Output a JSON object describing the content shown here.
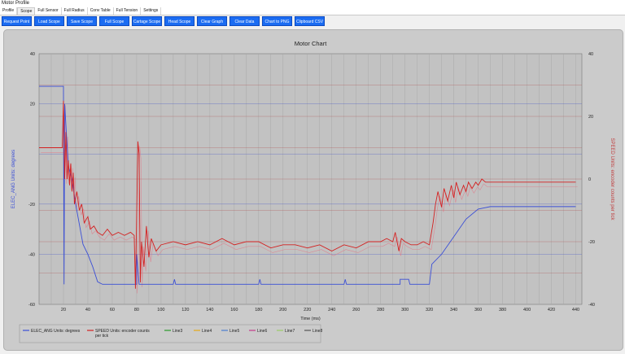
{
  "app_title": "Motor Profile",
  "tabs": [
    "Profile",
    "Scope",
    "Full Sensor",
    "Full Radius",
    "Conv Table",
    "Full Tension",
    "Settings"
  ],
  "active_tab": "Scope",
  "toolbar": [
    "Request Point",
    "Load Scope",
    "Save Scope",
    "Full Scope",
    "Cartage Scope",
    "Head Scope",
    "Clear Graph",
    "Clear Data",
    "Chart to PNG",
    "Clipboard CSV"
  ],
  "colors": {
    "button": "#1b6cf2",
    "plot_bg": "#c2c2c2",
    "elec": "#3b4fd6",
    "speed": "#d42020",
    "speed_light": "#e07a8a"
  },
  "chart_data": {
    "type": "line",
    "title": "Motor Chart",
    "xlabel": "Time (ms)",
    "ylabel": "ELEC_ANG Units: degrees",
    "y2label": "SPEED Units: encoder counts per tick",
    "xlim": [
      0,
      445
    ],
    "ylim": [
      -60,
      40
    ],
    "y2lim": [
      -40,
      40
    ],
    "x_ticks": [
      20,
      40,
      60,
      80,
      100,
      120,
      140,
      160,
      180,
      200,
      220,
      240,
      260,
      280,
      300,
      320,
      340,
      360,
      380,
      400,
      420,
      440
    ],
    "y_ticks": [
      40,
      20,
      -20,
      -40,
      -60
    ],
    "y2_ticks": [
      40,
      20,
      0,
      -20,
      -40
    ],
    "grid": true,
    "legend_position": "bottom-left",
    "series": [
      {
        "name": "ELEC_ANG Units: degrees",
        "axis": "left",
        "points": [
          [
            0,
            27
          ],
          [
            20,
            27
          ],
          [
            20.5,
            -52
          ],
          [
            21,
            20
          ],
          [
            24,
            -5
          ],
          [
            27,
            -10
          ],
          [
            30,
            -20
          ],
          [
            33,
            -28
          ],
          [
            36,
            -36
          ],
          [
            40,
            -40
          ],
          [
            44,
            -45
          ],
          [
            48,
            -51
          ],
          [
            52,
            -52
          ],
          [
            80,
            -52
          ],
          [
            80,
            -40
          ],
          [
            82,
            -52
          ],
          [
            110,
            -52
          ],
          [
            111,
            -50
          ],
          [
            112,
            -52
          ],
          [
            180,
            -52
          ],
          [
            181,
            -50
          ],
          [
            182,
            -52
          ],
          [
            250,
            -52
          ],
          [
            251,
            -50
          ],
          [
            252,
            -52
          ],
          [
            296,
            -52
          ],
          [
            296,
            -50
          ],
          [
            303,
            -50
          ],
          [
            304,
            -52
          ],
          [
            320,
            -52
          ],
          [
            322,
            -44
          ],
          [
            330,
            -40
          ],
          [
            340,
            -33
          ],
          [
            350,
            -26
          ],
          [
            360,
            -22
          ],
          [
            370,
            -21
          ],
          [
            440,
            -21
          ]
        ]
      },
      {
        "name": "SPEED Units: encoder counts per tick",
        "axis": "right",
        "points": [
          [
            0,
            10
          ],
          [
            18,
            10
          ],
          [
            19,
            10
          ],
          [
            20,
            25
          ],
          [
            21,
            0
          ],
          [
            22,
            15
          ],
          [
            23,
            0
          ],
          [
            24,
            6
          ],
          [
            25,
            -2
          ],
          [
            26,
            5
          ],
          [
            27,
            -4
          ],
          [
            28,
            2
          ],
          [
            29,
            -8
          ],
          [
            31,
            -4
          ],
          [
            33,
            -10
          ],
          [
            35,
            -8
          ],
          [
            37,
            -14
          ],
          [
            40,
            -12
          ],
          [
            42,
            -16
          ],
          [
            45,
            -15
          ],
          [
            48,
            -17
          ],
          [
            52,
            -18
          ],
          [
            56,
            -16
          ],
          [
            60,
            -18
          ],
          [
            65,
            -17
          ],
          [
            70,
            -18
          ],
          [
            75,
            -17
          ],
          [
            78,
            -18
          ],
          [
            79,
            -35
          ],
          [
            80,
            -12
          ],
          [
            81,
            12
          ],
          [
            82,
            8
          ],
          [
            83,
            -33
          ],
          [
            84,
            -20
          ],
          [
            86,
            -28
          ],
          [
            88,
            -15
          ],
          [
            90,
            -25
          ],
          [
            92,
            -19
          ],
          [
            96,
            -23
          ],
          [
            100,
            -21
          ],
          [
            110,
            -20
          ],
          [
            120,
            -21
          ],
          [
            130,
            -20
          ],
          [
            140,
            -21
          ],
          [
            150,
            -19
          ],
          [
            160,
            -21
          ],
          [
            170,
            -20
          ],
          [
            180,
            -20
          ],
          [
            190,
            -22
          ],
          [
            200,
            -21
          ],
          [
            210,
            -21
          ],
          [
            220,
            -22
          ],
          [
            230,
            -21
          ],
          [
            240,
            -23
          ],
          [
            250,
            -21
          ],
          [
            260,
            -22
          ],
          [
            270,
            -20
          ],
          [
            280,
            -20
          ],
          [
            285,
            -19
          ],
          [
            290,
            -20
          ],
          [
            292,
            -17
          ],
          [
            295,
            -23
          ],
          [
            297,
            -19
          ],
          [
            300,
            -20
          ],
          [
            305,
            -21
          ],
          [
            310,
            -21
          ],
          [
            315,
            -20
          ],
          [
            320,
            -21
          ],
          [
            323,
            -14
          ],
          [
            325,
            -8
          ],
          [
            327,
            -4
          ],
          [
            330,
            -9
          ],
          [
            332,
            -3
          ],
          [
            335,
            -7
          ],
          [
            338,
            -2
          ],
          [
            340,
            -6
          ],
          [
            342,
            -1
          ],
          [
            345,
            -5
          ],
          [
            348,
            -2
          ],
          [
            350,
            -4
          ],
          [
            352,
            -1
          ],
          [
            355,
            -3
          ],
          [
            358,
            -1
          ],
          [
            360,
            -2
          ],
          [
            363,
            0
          ],
          [
            366,
            -1
          ],
          [
            370,
            -1
          ],
          [
            375,
            -1
          ],
          [
            440,
            -1
          ]
        ]
      },
      {
        "name": "Line3",
        "axis": "right",
        "points": []
      },
      {
        "name": "Line4",
        "axis": "right",
        "points": []
      },
      {
        "name": "Line5",
        "axis": "right",
        "points": []
      },
      {
        "name": "Line6",
        "axis": "right",
        "points": []
      },
      {
        "name": "Line7",
        "axis": "right",
        "points": []
      },
      {
        "name": "Line8",
        "axis": "right",
        "points": []
      }
    ],
    "legend_colors": [
      "#3b4fd6",
      "#d42020",
      "#2a9a2a",
      "#e6a817",
      "#4a7fd0",
      "#c23b8b",
      "#9ccc65",
      "#555555"
    ]
  }
}
